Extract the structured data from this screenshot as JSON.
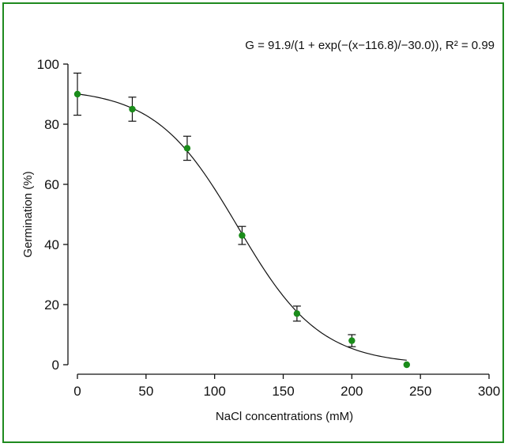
{
  "chart_data": {
    "type": "scatter",
    "equation": "G = 91.9/(1 + exp(−(x−116.8)/−30.0)), R² = 0.99",
    "xlabel": "NaCl concentrations (mM)",
    "ylabel": "Germination (%)",
    "xlim": [
      0,
      300
    ],
    "ylim": [
      0,
      100
    ],
    "x_ticks": [
      0,
      50,
      100,
      150,
      200,
      250,
      300
    ],
    "y_ticks": [
      0,
      20,
      40,
      60,
      80,
      100
    ],
    "grid": false,
    "points": [
      {
        "x": 0,
        "y": 90,
        "err": 7
      },
      {
        "x": 40,
        "y": 85,
        "err": 4
      },
      {
        "x": 80,
        "y": 72,
        "err": 4
      },
      {
        "x": 120,
        "y": 43,
        "err": 3
      },
      {
        "x": 160,
        "y": 17,
        "err": 2.5
      },
      {
        "x": 200,
        "y": 8,
        "err": 2
      },
      {
        "x": 240,
        "y": 0,
        "err": 0
      }
    ],
    "fit": {
      "A": 91.9,
      "x0": 116.8,
      "b": -30.0,
      "x_range": [
        0,
        240
      ]
    },
    "colors": {
      "point": "#1a8c1a",
      "line": "#111111",
      "frame": "#1f8a1f"
    }
  }
}
